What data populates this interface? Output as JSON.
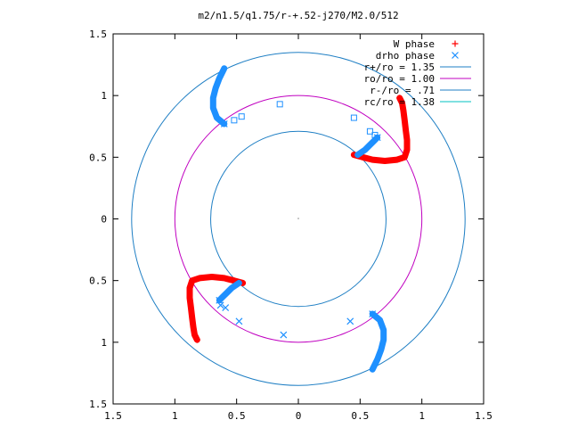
{
  "chart_data": {
    "type": "scatter",
    "title": "m2/n1.5/q1.75/r-+.52-j270/M2.0/512",
    "xlim": [
      -1.5,
      1.5
    ],
    "ylim": [
      -1.5,
      1.5
    ],
    "x_tick_labels": [
      "1.5",
      "1",
      "0.5",
      "0",
      "0.5",
      "1",
      "1.5"
    ],
    "x_tick_values": [
      -1.5,
      -1,
      -0.5,
      0,
      0.5,
      1,
      1.5
    ],
    "y_tick_labels": [
      "1.5",
      "1",
      "0.5",
      "0",
      "0.5",
      "1",
      "1.5"
    ],
    "y_tick_values": [
      1.5,
      1,
      0.5,
      0,
      -0.5,
      -1,
      -1.5
    ],
    "grid": false,
    "legend_position": "top-right",
    "legend": [
      {
        "label": "W phase",
        "marker": "+",
        "color": "#ff0000"
      },
      {
        "label": "drho phase",
        "marker": "x",
        "color": "#1e90ff"
      },
      {
        "label": "r+/ro = 1.35",
        "marker": "line",
        "color": "#1f7fc4"
      },
      {
        "label": "ro/ro = 1.00",
        "marker": "line",
        "color": "#c000c0"
      },
      {
        "label": "r-/ro = .71",
        "marker": "line",
        "color": "#1f7fc4"
      },
      {
        "label": "rc/ro = 1.38",
        "marker": "line",
        "color": "#00c0c0"
      }
    ],
    "circles": [
      {
        "name": "r+/ro = 1.35",
        "r": 1.35,
        "color": "#1f7fc4"
      },
      {
        "name": "ro/ro = 1.00",
        "r": 1.0,
        "color": "#c000c0"
      },
      {
        "name": "r-/ro = .71",
        "r": 0.71,
        "color": "#1f7fc4"
      }
    ],
    "series": [
      {
        "name": "W phase",
        "color": "#ff0000",
        "curves": [
          [
            [
              0.45,
              0.52
            ],
            [
              0.52,
              0.5
            ],
            [
              0.6,
              0.48
            ],
            [
              0.7,
              0.47
            ],
            [
              0.8,
              0.48
            ],
            [
              0.86,
              0.5
            ],
            [
              0.88,
              0.56
            ],
            [
              0.88,
              0.64
            ],
            [
              0.87,
              0.72
            ],
            [
              0.86,
              0.8
            ],
            [
              0.85,
              0.88
            ],
            [
              0.84,
              0.94
            ],
            [
              0.82,
              0.98
            ]
          ],
          [
            [
              -0.45,
              -0.52
            ],
            [
              -0.52,
              -0.5
            ],
            [
              -0.6,
              -0.48
            ],
            [
              -0.7,
              -0.47
            ],
            [
              -0.8,
              -0.48
            ],
            [
              -0.86,
              -0.5
            ],
            [
              -0.88,
              -0.56
            ],
            [
              -0.88,
              -0.64
            ],
            [
              -0.87,
              -0.72
            ],
            [
              -0.86,
              -0.8
            ],
            [
              -0.85,
              -0.88
            ],
            [
              -0.84,
              -0.94
            ],
            [
              -0.82,
              -0.98
            ]
          ]
        ]
      },
      {
        "name": "drho phase",
        "color": "#1e90ff",
        "curves": [
          [
            [
              -0.6,
              1.22
            ],
            [
              -0.64,
              1.14
            ],
            [
              -0.67,
              1.06
            ],
            [
              -0.69,
              0.98
            ],
            [
              -0.69,
              0.9
            ],
            [
              -0.66,
              0.82
            ],
            [
              -0.6,
              0.77
            ]
          ],
          [
            [
              0.48,
              0.52
            ],
            [
              0.54,
              0.56
            ],
            [
              0.58,
              0.6
            ],
            [
              0.62,
              0.64
            ],
            [
              0.64,
              0.66
            ]
          ],
          [
            [
              0.6,
              -1.22
            ],
            [
              0.64,
              -1.14
            ],
            [
              0.67,
              -1.06
            ],
            [
              0.69,
              -0.98
            ],
            [
              0.69,
              -0.9
            ],
            [
              0.66,
              -0.82
            ],
            [
              0.6,
              -0.77
            ]
          ],
          [
            [
              -0.48,
              -0.52
            ],
            [
              -0.54,
              -0.56
            ],
            [
              -0.58,
              -0.6
            ],
            [
              -0.62,
              -0.64
            ],
            [
              -0.64,
              -0.66
            ]
          ]
        ],
        "points": [
          [
            -0.52,
            0.8
          ],
          [
            -0.46,
            0.83
          ],
          [
            -0.15,
            0.93
          ],
          [
            0.45,
            0.82
          ],
          [
            0.58,
            0.71
          ],
          [
            0.62,
            0.68
          ],
          [
            -0.12,
            -0.94
          ],
          [
            0.42,
            -0.83
          ],
          [
            -0.48,
            -0.83
          ],
          [
            -0.63,
            -0.7
          ],
          [
            -0.59,
            -0.72
          ]
        ]
      }
    ]
  }
}
